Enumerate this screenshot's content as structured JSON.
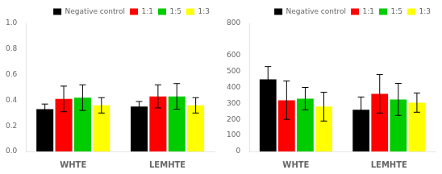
{
  "chart_data": [
    {
      "type": "bar",
      "categories": [
        "WHTE",
        "LEMHTE"
      ],
      "series": [
        {
          "name": "Negative control",
          "color": "#000000",
          "values": [
            0.33,
            0.35
          ],
          "errors": [
            0.04,
            0.04
          ]
        },
        {
          "name": "1:1",
          "color": "#ff0000",
          "values": [
            0.41,
            0.43
          ],
          "errors": [
            0.1,
            0.09
          ]
        },
        {
          "name": "1:5",
          "color": "#00cc00",
          "values": [
            0.42,
            0.43
          ],
          "errors": [
            0.1,
            0.1
          ]
        },
        {
          "name": "1:3",
          "color": "#ffff00",
          "values": [
            0.36,
            0.36
          ],
          "errors": [
            0.06,
            0.06
          ]
        }
      ],
      "ylim": [
        0.0,
        1.0
      ],
      "yticks": [
        {
          "value": 0.0,
          "label": "0.0"
        },
        {
          "value": 0.2,
          "label": "0.2"
        },
        {
          "value": 0.4,
          "label": "0.4"
        },
        {
          "value": 0.6,
          "label": "0.6"
        },
        {
          "value": 0.8,
          "label": "0.8"
        },
        {
          "value": 1.0,
          "label": "1.0"
        }
      ],
      "grid": false,
      "legend": "upper right"
    },
    {
      "type": "bar",
      "categories": [
        "WHTE",
        "LEMHTE"
      ],
      "series": [
        {
          "name": "Negative control",
          "color": "#000000",
          "values": [
            450,
            260
          ],
          "errors": [
            80,
            80
          ]
        },
        {
          "name": "1:1",
          "color": "#ff0000",
          "values": [
            320,
            360
          ],
          "errors": [
            120,
            120
          ]
        },
        {
          "name": "1:5",
          "color": "#00cc00",
          "values": [
            330,
            325
          ],
          "errors": [
            70,
            100
          ]
        },
        {
          "name": "1:3",
          "color": "#ffff00",
          "values": [
            280,
            305
          ],
          "errors": [
            90,
            60
          ]
        }
      ],
      "ylim": [
        0,
        800
      ],
      "yticks": [
        0,
        100,
        200,
        300,
        400,
        500,
        600,
        800
      ],
      "grid": false,
      "legend": "upper right"
    }
  ]
}
